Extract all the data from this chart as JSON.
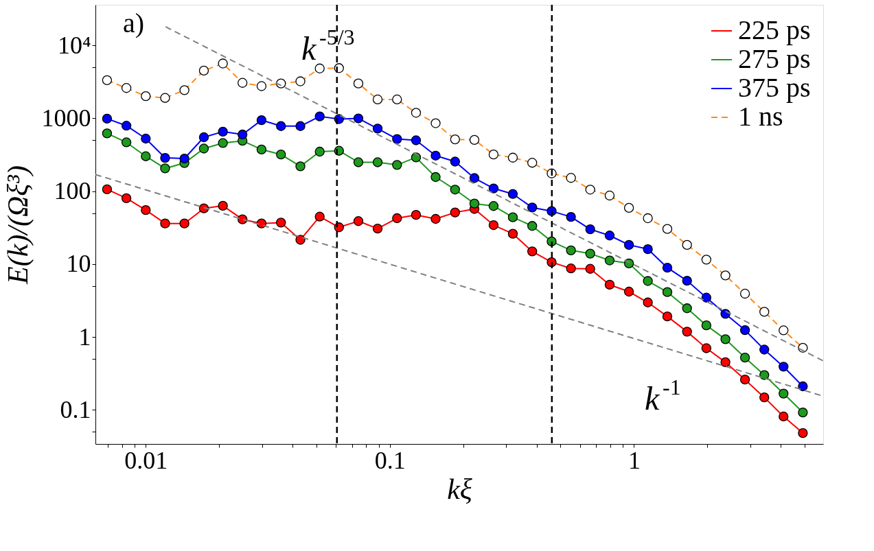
{
  "chart_data": {
    "type": "line",
    "xlabel": "kξ",
    "ylabel": "E(k)/(Ωξ³)",
    "log": "xy",
    "grid": false,
    "legend": "top right",
    "marker": "circle",
    "x": [
      0.00694,
      0.00833,
      0.01,
      0.012,
      0.0144,
      0.0173,
      0.0207,
      0.0249,
      0.0298,
      0.0358,
      0.043,
      0.0516,
      0.0619,
      0.0743,
      0.0891,
      0.107,
      0.128,
      0.154,
      0.185,
      0.222,
      0.266,
      0.319,
      0.383,
      0.46,
      0.552,
      0.662,
      0.795,
      0.954,
      1.14,
      1.37,
      1.65,
      1.98,
      2.37,
      2.85,
      3.42,
      4.1,
      4.92
    ],
    "xlim": [
      0.00622,
      5.96
    ],
    "xticks": [
      {
        "value": 0.007,
        "label": null
      },
      {
        "value": 0.008,
        "label": null
      },
      {
        "value": 0.009,
        "label": null
      },
      0.01,
      {
        "value": 0.02,
        "label": null
      },
      {
        "value": 0.03,
        "label": null
      },
      {
        "value": 0.04,
        "label": null
      },
      {
        "value": 0.05,
        "label": null
      },
      {
        "value": 0.06,
        "label": null
      },
      {
        "value": 0.07,
        "label": null
      },
      {
        "value": 0.08,
        "label": null
      },
      {
        "value": 0.09,
        "label": null
      },
      0.1,
      {
        "value": 0.2,
        "label": null
      },
      {
        "value": 0.3,
        "label": null
      },
      {
        "value": 0.4,
        "label": null
      },
      {
        "value": 0.5,
        "label": null
      },
      {
        "value": 0.6,
        "label": null
      },
      {
        "value": 0.7,
        "label": null
      },
      {
        "value": 0.8,
        "label": null
      },
      {
        "value": 0.9,
        "label": null
      },
      1,
      {
        "value": 2,
        "label": null
      },
      {
        "value": 3,
        "label": null
      },
      {
        "value": 4,
        "label": null
      },
      {
        "value": 5,
        "label": null
      }
    ],
    "ylim": [
      0.034,
      36000
    ],
    "yticks": [
      {
        "value": 0.05,
        "label": null
      },
      0.1,
      {
        "value": 0.5,
        "label": null
      },
      1,
      {
        "value": 5,
        "label": null
      },
      10,
      {
        "value": 50,
        "label": null
      },
      100,
      {
        "value": 500,
        "label": null
      },
      1000,
      {
        "value": 5000,
        "label": null
      },
      {
        "value": 10000,
        "label": "10⁴"
      }
    ],
    "series": [
      {
        "name": "225 ps",
        "color": "#ff0000",
        "values": [
          106,
          80,
          55,
          36,
          36,
          58,
          63,
          41,
          36,
          37,
          21.5,
          44.7,
          31.9,
          38.8,
          30.6,
          42.5,
          47.2,
          41.6,
          51,
          57,
          34.2,
          26,
          14.9,
          10.6,
          8.7,
          8.6,
          5.2,
          4.18,
          2.97,
          1.91,
          1.18,
          0.7,
          0.45,
          0.26,
          0.148,
          0.081,
          0.048
        ]
      },
      {
        "name": "275 ps",
        "color": "#1e9a1e",
        "values": [
          620,
          467,
          301,
          205,
          243,
          384,
          457,
          491,
          373,
          318,
          219,
          348,
          358,
          249,
          249,
          229,
          290,
          156,
          105,
          67.5,
          62.5,
          43.8,
          33.3,
          20.4,
          15.4,
          13.9,
          11.2,
          10.2,
          5.85,
          4.12,
          2.47,
          1.44,
          0.93,
          0.52,
          0.3,
          0.167,
          0.092
        ]
      },
      {
        "name": "375 ps",
        "color": "#0000ff",
        "values": [
          988,
          790,
          526,
          286,
          280,
          549,
          655,
          598,
          942,
          780,
          780,
          1060,
          975,
          995,
          722,
          519,
          498,
          307,
          254,
          151,
          109,
          91.4,
          59.6,
          53.2,
          44.3,
          30,
          24.6,
          18.3,
          16,
          8.9,
          5.9,
          3.46,
          2.07,
          1.24,
          0.67,
          0.39,
          0.21
        ]
      },
      {
        "name": "1 ns",
        "color": "#ff8c1a",
        "line_style": "dashed",
        "values": [
          3330,
          2600,
          2010,
          1900,
          2430,
          4500,
          5640,
          3060,
          2760,
          3000,
          3210,
          4820,
          4870,
          3000,
          1810,
          1810,
          1190,
          855,
          513,
          505,
          318,
          288,
          245,
          175,
          152,
          105,
          87,
          59,
          42.5,
          30.3,
          18.3,
          11.5,
          6.97,
          3.92,
          2.21,
          1.23,
          0.71
        ]
      },
      {
        "type": "line",
        "color": "#808080",
        "line_style": "dashed",
        "marker": "none",
        "x": [
          0.01205,
          5.96
        ],
        "values": [
          18000,
          0.47
        ]
      },
      {
        "type": "line",
        "color": "#808080",
        "line_style": "dashed",
        "marker": "none",
        "x": [
          0.00622,
          5.96
        ],
        "values": [
          169,
          0.154
        ]
      }
    ],
    "ref_lines": [
      {
        "axis": "x",
        "value": 0.0607,
        "color": "#000000",
        "line_style": "dashed"
      },
      {
        "axis": "x",
        "value": 0.461,
        "color": "#000000",
        "line_style": "dashed"
      }
    ],
    "annotations": [
      "a)",
      "k$^{-5/3}$",
      "k$^{-1}$"
    ]
  }
}
